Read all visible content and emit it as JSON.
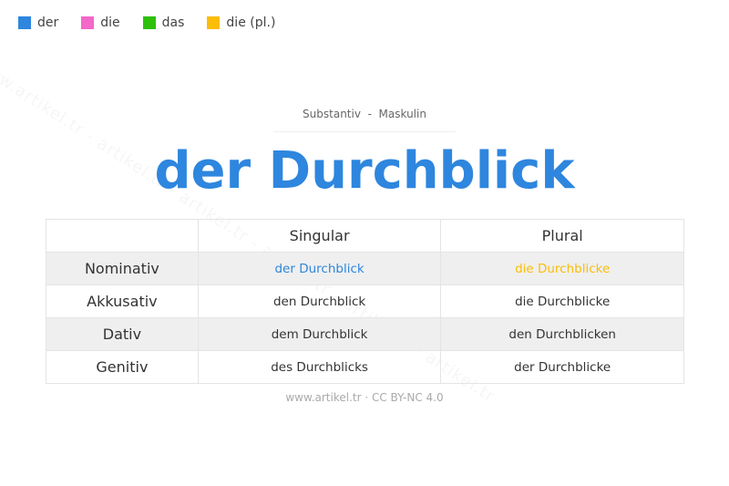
{
  "legend": [
    {
      "label": "der",
      "color": "#2e86de"
    },
    {
      "label": "die",
      "color": "#f368c8"
    },
    {
      "label": "das",
      "color": "#2dc00b"
    },
    {
      "label": "die (pl.)",
      "color": "#fbbd08"
    }
  ],
  "watermark": "www.artikel.tr - artikel.tr - artikel.tr - artikel.tr - artikel.tr - artikel.tr",
  "subtitle": "Substantiv  -  Maskulin",
  "title": "der Durchblick",
  "title_color": "#2e86de",
  "table": {
    "headers": [
      "",
      "Singular",
      "Plural"
    ],
    "rows": [
      {
        "case": "Nominativ",
        "singular": "der Durchblick",
        "plural": "die Durchblicke"
      },
      {
        "case": "Akkusativ",
        "singular": "den Durchblick",
        "plural": "die Durchblicke"
      },
      {
        "case": "Dativ",
        "singular": "dem Durchblick",
        "plural": "den Durchblicken"
      },
      {
        "case": "Genitiv",
        "singular": "des Durchblicks",
        "plural": "der Durchblicke"
      }
    ],
    "nominativ_singular_color": "#2e86de",
    "nominativ_plural_color": "#fbbd08"
  },
  "footer": "www.artikel.tr · CC BY-NC 4.0"
}
